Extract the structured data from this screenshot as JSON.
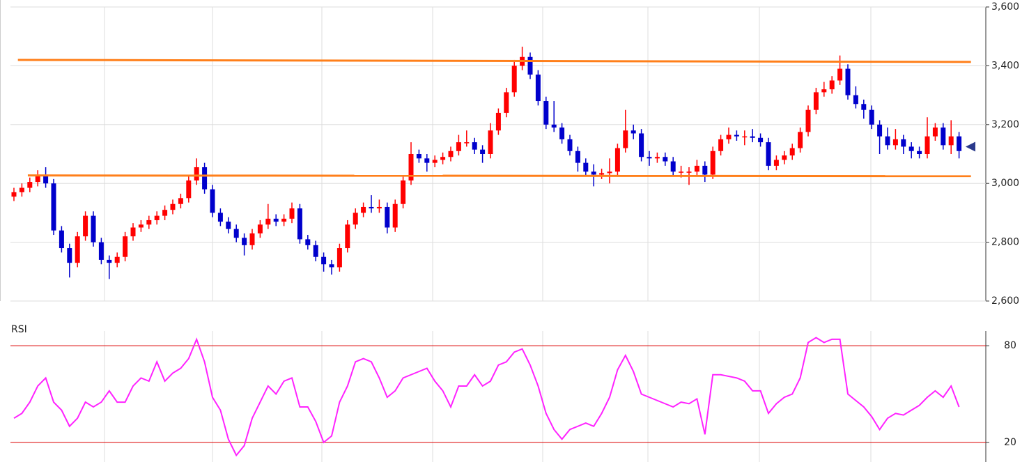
{
  "chart_data": [
    {
      "type": "candlestick",
      "up_color": "#ff0000",
      "down_color": "#0000cc",
      "ylim": [
        2600,
        3600
      ],
      "yticks": [
        {
          "value": 2600,
          "label": "2,600"
        },
        {
          "value": 2800,
          "label": "2,800"
        },
        {
          "value": 3000,
          "label": "3,000"
        },
        {
          "value": 3200,
          "label": "3,200"
        },
        {
          "value": 3400,
          "label": "3,400"
        },
        {
          "value": 3600,
          "label": "3,600"
        }
      ],
      "grid": true,
      "open": [
        2955,
        2970,
        2985,
        3005,
        3030,
        3000,
        2840,
        2780,
        2730,
        2820,
        2890,
        2800,
        2740,
        2730,
        2750,
        2820,
        2850,
        2860,
        2875,
        2890,
        2910,
        2930,
        2950,
        3010,
        3055,
        2980,
        2900,
        2870,
        2845,
        2815,
        2790,
        2830,
        2860,
        2880,
        2870,
        2880,
        2915,
        2810,
        2790,
        2750,
        2725,
        2715,
        2780,
        2860,
        2900,
        2920,
        2915,
        2920,
        2850,
        2930,
        3010,
        3100,
        3085,
        3070,
        3080,
        3090,
        3110,
        3140,
        3140,
        3115,
        3100,
        3180,
        3240,
        3310,
        3400,
        3430,
        3370,
        3280,
        3200,
        3190,
        3150,
        3110,
        3070,
        3040,
        3030,
        3035,
        3040,
        3120,
        3180,
        3170,
        3090,
        3085,
        3090,
        3075,
        3040,
        3040,
        3040,
        3060,
        3030,
        3110,
        3150,
        3165,
        3160,
        3160,
        3155,
        3140,
        3060,
        3080,
        3095,
        3120,
        3175,
        3250,
        3310,
        3320,
        3350,
        3390,
        3300,
        3270,
        3250,
        3200,
        3160,
        3130,
        3150,
        3125,
        3110,
        3100,
        3160,
        3190,
        3130,
        3160
      ],
      "high": [
        2985,
        3000,
        3020,
        3045,
        3055,
        3015,
        2855,
        2795,
        2835,
        2905,
        2905,
        2815,
        2755,
        2765,
        2835,
        2865,
        2875,
        2890,
        2905,
        2925,
        2945,
        2965,
        3025,
        3085,
        3070,
        2995,
        2915,
        2885,
        2860,
        2830,
        2845,
        2875,
        2930,
        2895,
        2895,
        2935,
        2930,
        2825,
        2805,
        2765,
        2740,
        2795,
        2875,
        2915,
        2935,
        2960,
        2945,
        2935,
        2945,
        3025,
        3140,
        3115,
        3100,
        3095,
        3105,
        3125,
        3165,
        3180,
        3155,
        3130,
        3205,
        3255,
        3325,
        3420,
        3465,
        3445,
        3385,
        3295,
        3280,
        3205,
        3165,
        3125,
        3085,
        3065,
        3050,
        3085,
        3135,
        3250,
        3200,
        3185,
        3110,
        3105,
        3105,
        3090,
        3060,
        3055,
        3080,
        3075,
        3125,
        3165,
        3190,
        3180,
        3180,
        3185,
        3170,
        3155,
        3095,
        3110,
        3135,
        3190,
        3265,
        3325,
        3345,
        3365,
        3435,
        3405,
        3330,
        3285,
        3265,
        3215,
        3190,
        3185,
        3165,
        3140,
        3125,
        3225,
        3205,
        3205,
        3215,
        3175
      ],
      "low": [
        2940,
        2955,
        2970,
        2990,
        2985,
        2825,
        2765,
        2680,
        2715,
        2805,
        2785,
        2725,
        2675,
        2715,
        2735,
        2805,
        2835,
        2845,
        2860,
        2875,
        2895,
        2915,
        2935,
        2995,
        2965,
        2885,
        2855,
        2830,
        2800,
        2755,
        2775,
        2815,
        2845,
        2855,
        2855,
        2865,
        2795,
        2775,
        2735,
        2700,
        2690,
        2700,
        2765,
        2845,
        2885,
        2900,
        2900,
        2830,
        2835,
        2915,
        2995,
        3070,
        3040,
        3055,
        3065,
        3075,
        3095,
        3125,
        3100,
        3070,
        3085,
        3165,
        3225,
        3295,
        3385,
        3355,
        3265,
        3185,
        3175,
        3135,
        3095,
        3040,
        3025,
        2990,
        3015,
        3000,
        3025,
        3105,
        3150,
        3075,
        3060,
        3070,
        3060,
        3025,
        3020,
        2995,
        3025,
        3005,
        3015,
        3095,
        3135,
        3145,
        3130,
        3140,
        3125,
        3045,
        3045,
        3065,
        3080,
        3105,
        3160,
        3235,
        3295,
        3305,
        3335,
        3285,
        3255,
        3220,
        3185,
        3100,
        3115,
        3115,
        3100,
        3085,
        3085,
        3085,
        3145,
        3115,
        3100,
        3085
      ],
      "close": [
        2970,
        2985,
        3005,
        3030,
        3000,
        2840,
        2780,
        2730,
        2820,
        2890,
        2800,
        2740,
        2730,
        2750,
        2820,
        2850,
        2860,
        2875,
        2890,
        2910,
        2930,
        2950,
        3010,
        3055,
        2980,
        2900,
        2870,
        2845,
        2815,
        2790,
        2830,
        2860,
        2880,
        2870,
        2880,
        2915,
        2810,
        2790,
        2750,
        2725,
        2715,
        2780,
        2860,
        2900,
        2920,
        2915,
        2920,
        2850,
        2930,
        3010,
        3100,
        3085,
        3070,
        3080,
        3090,
        3110,
        3140,
        3140,
        3115,
        3100,
        3180,
        3240,
        3310,
        3400,
        3430,
        3370,
        3280,
        3200,
        3190,
        3150,
        3110,
        3070,
        3040,
        3030,
        3035,
        3040,
        3120,
        3180,
        3170,
        3090,
        3085,
        3090,
        3075,
        3040,
        3040,
        3040,
        3060,
        3030,
        3110,
        3150,
        3165,
        3160,
        3160,
        3155,
        3140,
        3060,
        3080,
        3095,
        3120,
        3175,
        3250,
        3310,
        3320,
        3350,
        3390,
        3300,
        3270,
        3250,
        3200,
        3160,
        3130,
        3150,
        3125,
        3110,
        3100,
        3160,
        3190,
        3130,
        3160,
        3110
      ],
      "lines": [
        {
          "color": "#ff7f1a",
          "x": [
            0.5,
            120.5
          ],
          "values": [
            3420,
            3413
          ]
        },
        {
          "color": "#ff7f1a",
          "x": [
            1.75,
            120.5
          ],
          "values": [
            3027,
            3025
          ]
        }
      ],
      "last_marker": {
        "color": "#2a3a8c",
        "value": 3125
      }
    },
    {
      "type": "line",
      "title": "RSI",
      "color": "#ff22ff",
      "ylim": [
        10,
        90
      ],
      "yticks": [
        20,
        80
      ],
      "level_color": "#dd0000",
      "values": [
        35,
        38,
        45,
        55,
        60,
        45,
        40,
        30,
        35,
        45,
        42,
        45,
        52,
        45,
        45,
        55,
        60,
        58,
        70,
        58,
        63,
        66,
        72,
        84,
        70,
        48,
        40,
        22,
        12,
        18,
        35,
        45,
        55,
        50,
        58,
        60,
        42,
        42,
        33,
        20,
        24,
        45,
        55,
        70,
        72,
        70,
        60,
        48,
        52,
        60,
        62,
        64,
        66,
        58,
        52,
        42,
        55,
        55,
        62,
        55,
        58,
        68,
        70,
        76,
        78,
        68,
        55,
        38,
        28,
        22,
        28,
        30,
        32,
        30,
        38,
        48,
        65,
        74,
        64,
        50,
        48,
        46,
        44,
        42,
        45,
        44,
        47,
        25,
        62,
        62,
        61,
        60,
        58,
        52,
        52,
        38,
        44,
        48,
        50,
        60,
        82,
        85,
        82,
        84,
        84,
        50,
        46,
        42,
        36,
        28,
        35,
        38,
        37,
        40,
        43,
        48,
        52,
        48,
        55,
        42
      ]
    }
  ]
}
